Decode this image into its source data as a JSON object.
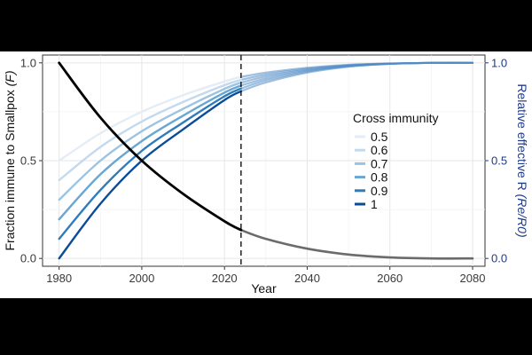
{
  "chart_data": {
    "type": "line",
    "xlabel": "Year",
    "ylabel_left_text": "Fraction immune to Smallpox ",
    "ylabel_left_symbol": "(F)",
    "ylabel_right_text": "Relative effective R ",
    "ylabel_right_symbol": "(Re/R0)",
    "xlim": [
      1976,
      2083
    ],
    "ylim": [
      -0.04,
      1.04
    ],
    "x_ticks": [
      "1980",
      "2000",
      "2020",
      "2040",
      "2060",
      "2080"
    ],
    "y_ticks_left": [
      "0.0",
      "0.5",
      "1.0"
    ],
    "y_ticks_right": [
      "0.0",
      "0.5",
      "1.0"
    ],
    "vertical_line_year": 2024,
    "grid": true,
    "legend": {
      "title": "Cross immunity",
      "position": "right",
      "entries": [
        "0.5",
        "0.6",
        "0.7",
        "0.8",
        "0.9",
        "1"
      ]
    },
    "colors": {
      "0.5": "#e4ecf6",
      "0.6": "#c4d9ee",
      "0.7": "#9cc4e2",
      "0.8": "#6aa6d2",
      "0.9": "#2f7cbd",
      "1": "#0a4c98",
      "fraction_immune": "#000000",
      "fraction_immune_future": "#6b6b6b",
      "right_axis": "#1f3b87"
    },
    "fraction_immune_series": {
      "x": [
        1980,
        1990,
        2000,
        2010,
        2020,
        2024,
        2030,
        2040,
        2050,
        2060,
        2070,
        2080
      ],
      "y": [
        1.0,
        0.72,
        0.5,
        0.33,
        0.19,
        0.145,
        0.1,
        0.05,
        0.02,
        0.005,
        0.0,
        0.0
      ]
    },
    "series": [
      {
        "name": "0.5",
        "x": [
          1980,
          1990,
          2000,
          2010,
          2020,
          2024,
          2030,
          2040,
          2050,
          2060,
          2070,
          2080
        ],
        "y": [
          0.5,
          0.64,
          0.75,
          0.835,
          0.905,
          0.928,
          0.95,
          0.975,
          0.99,
          0.997,
          1.0,
          1.0
        ]
      },
      {
        "name": "0.6",
        "x": [
          1980,
          1990,
          2000,
          2010,
          2020,
          2024,
          2030,
          2040,
          2050,
          2060,
          2070,
          2080
        ],
        "y": [
          0.4,
          0.57,
          0.7,
          0.8,
          0.886,
          0.913,
          0.94,
          0.97,
          0.988,
          0.996,
          1.0,
          1.0
        ]
      },
      {
        "name": "0.7",
        "x": [
          1980,
          1990,
          2000,
          2010,
          2020,
          2024,
          2030,
          2040,
          2050,
          2060,
          2070,
          2080
        ],
        "y": [
          0.3,
          0.5,
          0.65,
          0.765,
          0.867,
          0.899,
          0.93,
          0.965,
          0.986,
          0.996,
          1.0,
          1.0
        ]
      },
      {
        "name": "0.8",
        "x": [
          1980,
          1990,
          2000,
          2010,
          2020,
          2024,
          2030,
          2040,
          2050,
          2060,
          2070,
          2080
        ],
        "y": [
          0.2,
          0.43,
          0.6,
          0.73,
          0.848,
          0.884,
          0.92,
          0.96,
          0.984,
          0.995,
          1.0,
          1.0
        ]
      },
      {
        "name": "0.9",
        "x": [
          1980,
          1990,
          2000,
          2010,
          2020,
          2024,
          2030,
          2040,
          2050,
          2060,
          2070,
          2080
        ],
        "y": [
          0.1,
          0.35,
          0.55,
          0.695,
          0.829,
          0.869,
          0.91,
          0.955,
          0.982,
          0.995,
          1.0,
          1.0
        ]
      },
      {
        "name": "1",
        "x": [
          1980,
          1990,
          2000,
          2010,
          2020,
          2024,
          2030,
          2040,
          2050,
          2060,
          2070,
          2080
        ],
        "y": [
          0.0,
          0.28,
          0.5,
          0.66,
          0.81,
          0.855,
          0.9,
          0.95,
          0.98,
          0.995,
          1.0,
          1.0
        ]
      }
    ]
  }
}
